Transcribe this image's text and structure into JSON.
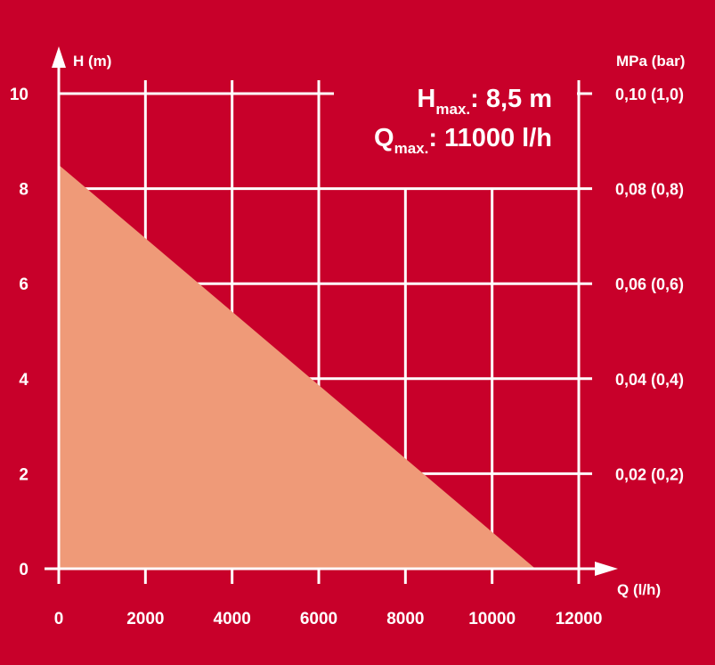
{
  "chart_data": {
    "type": "area",
    "xlabel": "Q (l/h)",
    "ylabel": "H (m)",
    "y2label": "MPa (bar)",
    "xlim": [
      0,
      12000
    ],
    "ylim": [
      0,
      10
    ],
    "x_ticks": [
      "0",
      "2000",
      "4000",
      "6000",
      "8000",
      "10000",
      "12000"
    ],
    "y_ticks": [
      "0",
      "2",
      "4",
      "6",
      "8",
      "10"
    ],
    "y2_ticks": [
      "0,02 (0,2)",
      "0,04 (0,4)",
      "0,06 (0,6)",
      "0,08 (0,8)",
      "0,10 (1,0)"
    ],
    "grid": true,
    "series": [
      {
        "x": [
          0,
          11000
        ],
        "y": [
          8.5,
          0
        ]
      }
    ],
    "annotations": {
      "hmax_prefix": "H",
      "hmax_sub": "max.",
      "hmax_value": ": 8,5 m",
      "qmax_prefix": "Q",
      "qmax_sub": "max.",
      "qmax_value": ": 11000 l/h"
    }
  },
  "colors": {
    "background": "#c8002a",
    "fill": "#ef9a78",
    "grid": "#ffffff",
    "text": "#ffffff"
  }
}
